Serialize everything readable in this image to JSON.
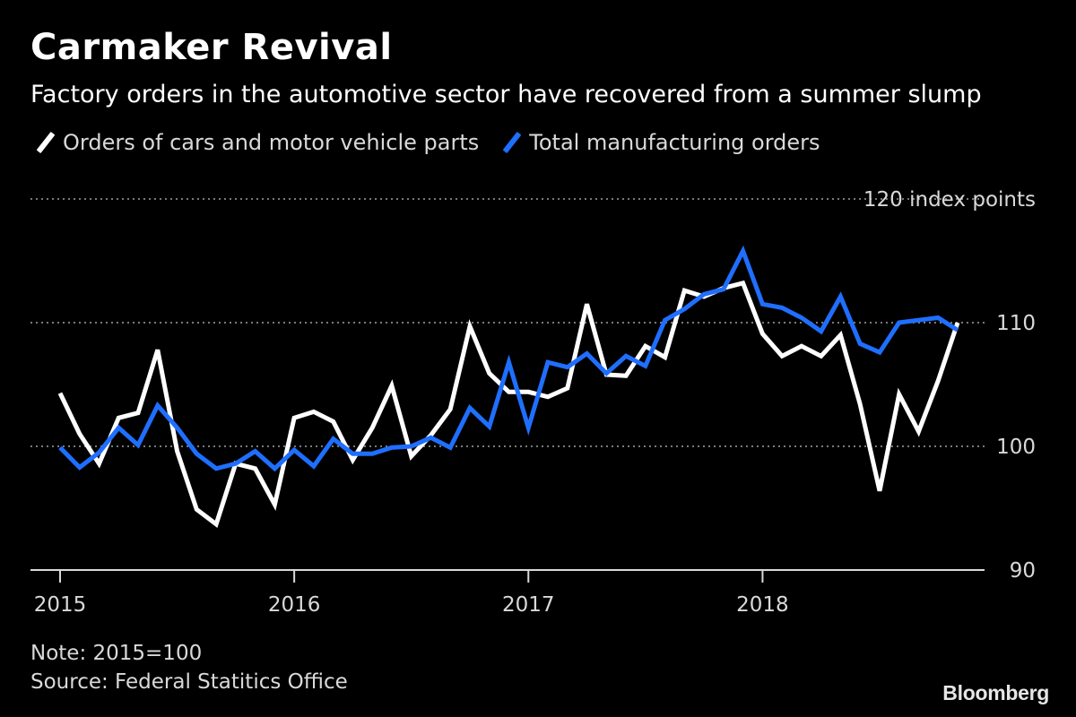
{
  "colors": {
    "background": "#000000",
    "series_cars": "#ffffff",
    "series_total": "#1f6fff",
    "grid": "#7a7a7a",
    "axis": "#d9d9d9"
  },
  "brand": "Bloomberg",
  "footer": {
    "note": "Note: 2015=100",
    "source": "Source: Federal Statitics Office"
  },
  "chart_data": {
    "type": "line",
    "title": "Carmaker Revival",
    "subtitle": "Factory orders in the automotive sector have recovered from a summer slump",
    "ylabel": "120 index points",
    "ylim": [
      90,
      120
    ],
    "yticks": [
      90,
      100,
      110,
      120
    ],
    "ytick_labels": [
      "90",
      "100",
      "110",
      "120 index points"
    ],
    "xlim": [
      2015.0,
      2018.875
    ],
    "xticks": [
      2015,
      2016,
      2017,
      2018
    ],
    "xtick_labels": [
      "2015",
      "2016",
      "2017",
      "2018"
    ],
    "legend": "top-left",
    "x_start": 2015.0,
    "x_step": 0.08333,
    "series": [
      {
        "name": "Orders of cars and motor vehicle parts",
        "values": [
          104.3,
          101.0,
          98.6,
          102.3,
          102.7,
          107.8,
          99.6,
          94.9,
          93.7,
          98.6,
          98.2,
          95.3,
          102.3,
          102.8,
          102.0,
          98.9,
          101.5,
          104.9,
          99.2,
          100.9,
          103.0,
          109.7,
          105.9,
          104.4,
          104.4,
          104.0,
          104.7,
          111.5,
          105.8,
          105.7,
          108.1,
          107.2,
          112.6,
          112.1,
          112.8,
          113.2,
          109.1,
          107.3,
          108.1,
          107.3,
          109.0,
          103.4,
          96.4,
          104.2,
          101.2,
          105.3,
          110.0
        ]
      },
      {
        "name": "Total manufacturing orders",
        "values": [
          99.9,
          98.3,
          99.5,
          101.5,
          100.1,
          103.3,
          101.5,
          99.4,
          98.2,
          98.6,
          99.6,
          98.2,
          99.7,
          98.4,
          100.6,
          99.4,
          99.4,
          99.9,
          100.0,
          100.7,
          99.9,
          103.1,
          101.6,
          106.8,
          101.5,
          106.8,
          106.4,
          107.5,
          105.9,
          107.3,
          106.5,
          110.2,
          111.1,
          112.3,
          112.7,
          115.8,
          111.5,
          111.2,
          110.4,
          109.3,
          112.1,
          108.3,
          107.6,
          110.0,
          110.2,
          110.4,
          109.4
        ]
      }
    ]
  }
}
